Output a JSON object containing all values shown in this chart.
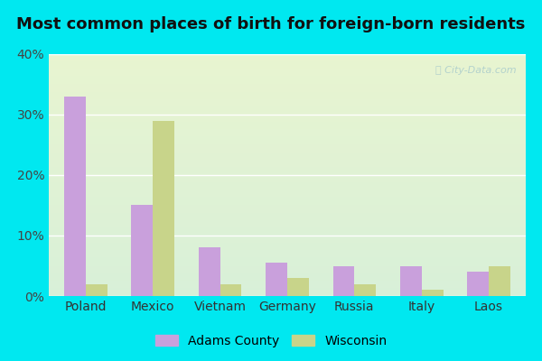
{
  "title": "Most common places of birth for foreign-born residents",
  "categories": [
    "Poland",
    "Mexico",
    "Vietnam",
    "Germany",
    "Russia",
    "Italy",
    "Laos"
  ],
  "adams_county": [
    33.0,
    15.0,
    8.0,
    5.5,
    5.0,
    5.0,
    4.0
  ],
  "wisconsin": [
    2.0,
    29.0,
    2.0,
    3.0,
    2.0,
    1.0,
    5.0
  ],
  "adams_color": "#c9a0dc",
  "wisconsin_color": "#c8d48a",
  "bg_top": "#d8f0d8",
  "bg_bottom": "#e8f0d0",
  "outer_bg": "#00e8f0",
  "ylim": [
    0,
    40
  ],
  "yticks": [
    0,
    10,
    20,
    30,
    40
  ],
  "ytick_labels": [
    "0%",
    "10%",
    "20%",
    "30%",
    "40%"
  ],
  "legend_adams": "Adams County",
  "legend_wisconsin": "Wisconsin",
  "bar_width": 0.32,
  "title_fontsize": 13,
  "watermark": "ⓘ City-Data.com"
}
